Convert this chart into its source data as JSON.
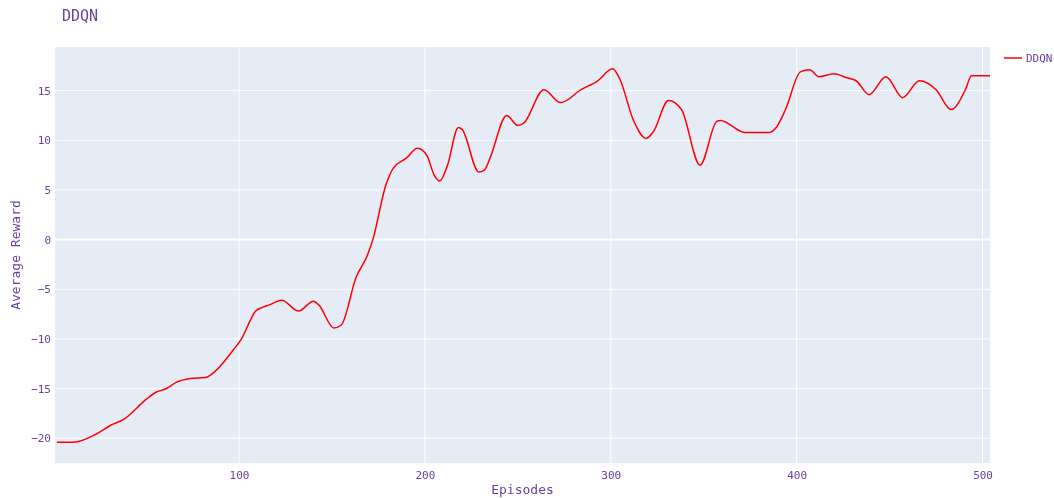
{
  "chart_data": {
    "type": "line",
    "title": "DDQN",
    "xlabel": "Episodes",
    "ylabel": "Average Reward",
    "xlim": [
      1,
      504
    ],
    "ylim": [
      -22.5,
      19.4
    ],
    "xticks": [
      100,
      200,
      300,
      400,
      500
    ],
    "yticks": [
      -20,
      -15,
      -10,
      -5,
      0,
      5,
      10,
      15
    ],
    "grid": true,
    "legend": "top right",
    "line_style": "solid",
    "marker": "none",
    "series": [
      {
        "name": "DDQN",
        "color": "#ff0000",
        "x": [
          2,
          11,
          23,
          31,
          38,
          50,
          55,
          61,
          66,
          74,
          82,
          85,
          97,
          101,
          109,
          113,
          116,
          123,
          132,
          140,
          143,
          151,
          155,
          163,
          169,
          172,
          179,
          183,
          190,
          196,
          201,
          205,
          208,
          212,
          218,
          220,
          229,
          232,
          235,
          244,
          250,
          253,
          264,
          273,
          284,
          293,
          301,
          305,
          312,
          319,
          323,
          331,
          338,
          348,
          357,
          359,
          372,
          385,
          389,
          394,
          402,
          407,
          412,
          420,
          427,
          432,
          439,
          448,
          457,
          466,
          475,
          483,
          491,
          494,
          504
        ],
        "values": [
          -20.4,
          -20.4,
          -19.6,
          -18.7,
          -18.1,
          -16.1,
          -15.4,
          -15.0,
          -14.4,
          -14.0,
          -13.9,
          -13.6,
          -11.1,
          -10.1,
          -7.2,
          -6.8,
          -6.6,
          -6.1,
          -7.2,
          -6.2,
          -6.6,
          -8.9,
          -8.6,
          -3.8,
          -1.6,
          0,
          5.5,
          7.2,
          8.2,
          9.2,
          8.5,
          6.5,
          5.9,
          7.4,
          11.3,
          11.1,
          6.8,
          7.0,
          8.2,
          12.5,
          11.5,
          11.7,
          15.1,
          13.8,
          15.1,
          16.0,
          17.2,
          16.1,
          12.1,
          10.2,
          10.9,
          14.0,
          13.1,
          7.5,
          11.9,
          12.0,
          10.8,
          10.8,
          11.3,
          13.1,
          16.9,
          17.1,
          16.4,
          16.7,
          16.3,
          16.0,
          14.6,
          16.4,
          14.3,
          16.0,
          15.1,
          13.1,
          15.2,
          16.5,
          16.5
        ]
      }
    ]
  }
}
